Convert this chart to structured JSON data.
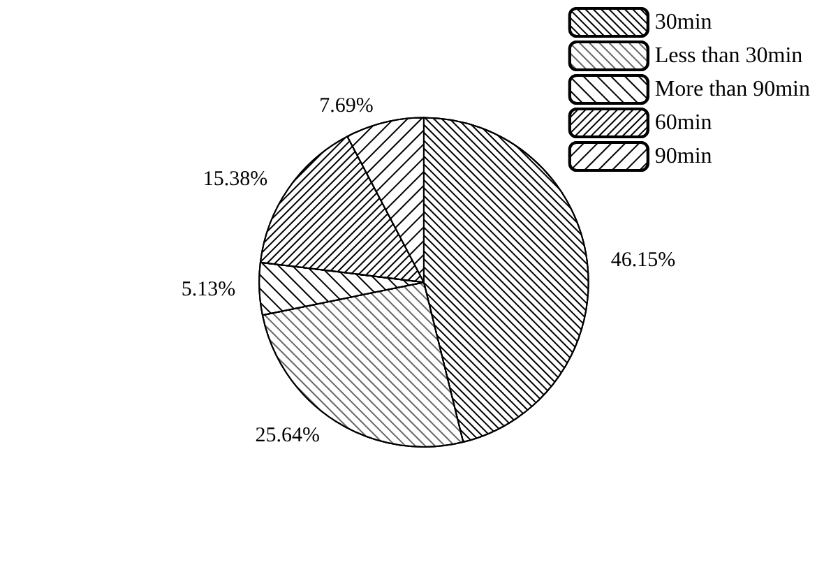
{
  "chart_data": {
    "type": "pie",
    "categories": [
      "30min",
      "Less than 30min",
      "More than 90min",
      "60min",
      "90min"
    ],
    "values": [
      46.15,
      25.64,
      5.13,
      15.38,
      7.69
    ],
    "colors": [
      "#ffffff",
      "#ffffff",
      "#ffffff",
      "#ffffff",
      "#ffffff"
    ],
    "value_labels": [
      "46.15%",
      "25.64%",
      "5.13%",
      "15.38%",
      "7.69%"
    ],
    "legend": "top right"
  }
}
